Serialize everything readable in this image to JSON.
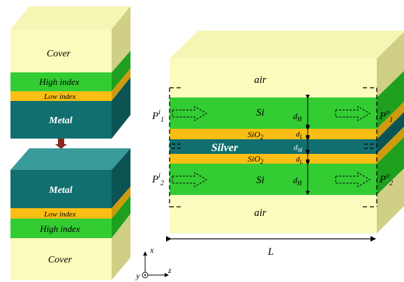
{
  "colors": {
    "cover_front": "#fbfbbd",
    "cover_side": "#cfcf86",
    "cover_top": "#f6f6b4",
    "high_front": "#33cc33",
    "high_side": "#1ea01e",
    "low_front": "#fbbe14",
    "low_side": "#cf9a0e",
    "metal_front": "#126f70",
    "metal_side": "#0c5454",
    "metal_top": "#3a9b9b",
    "arrow": "#8b2a20",
    "line": "#000000",
    "white_text": "#ffffff"
  },
  "left_stacks": {
    "top": {
      "cover": "Cover",
      "high": "High index",
      "low": "Low index",
      "metal": "Metal"
    },
    "bottom": {
      "metal": "Metal",
      "low": "Low index",
      "high": "High index",
      "cover": "Cover"
    }
  },
  "right_structure": {
    "air_top": "air",
    "si_top": "Si",
    "sio2_top": "SiO",
    "sio2_sub": "2",
    "silver": "Silver",
    "sio2_bottom": "SiO",
    "si_bottom": "Si",
    "air_bottom": "air",
    "d_H": "d",
    "d_H_sub": "H",
    "d_L": "d",
    "d_L_sub": "L",
    "d_M": "d",
    "d_M_sub": "M",
    "P": "P",
    "P_in_sup": "i",
    "P_out_sup": "o",
    "P1_sub": "1",
    "P2_sub": "2",
    "length_label": "L"
  },
  "axes": {
    "x": "x",
    "y": "y",
    "z": "z"
  }
}
